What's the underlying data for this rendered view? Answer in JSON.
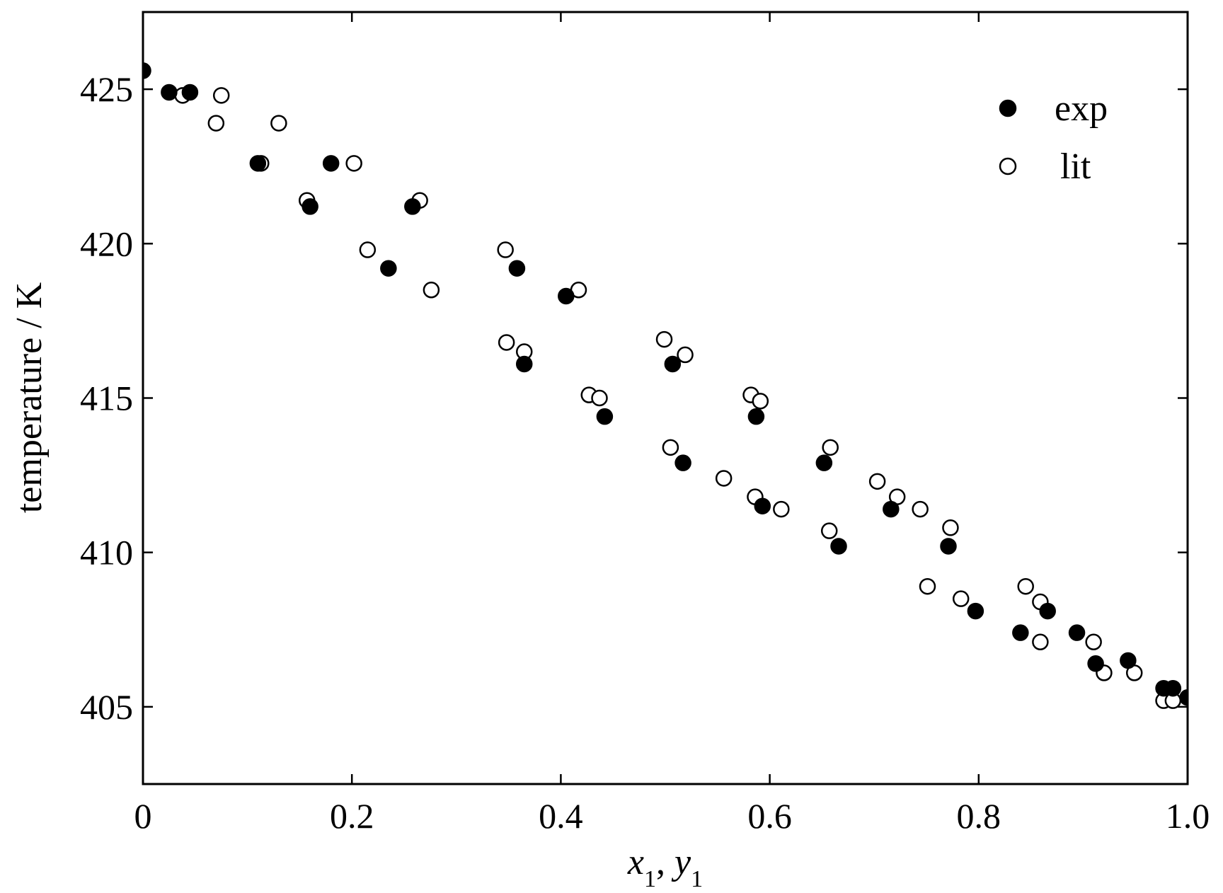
{
  "chart_data": {
    "type": "scatter",
    "xlabel": "x1, y1",
    "xlabel_parts": {
      "var1": "x",
      "sub1": "1",
      "sep": ", ",
      "var2": "y",
      "sub2": "1"
    },
    "ylabel": "temperature / K",
    "xlim": [
      0,
      1.0
    ],
    "ylim": [
      402.5,
      427.5
    ],
    "x_ticks": [
      0,
      0.2,
      0.4,
      0.6,
      0.8,
      1.0
    ],
    "x_tick_labels": [
      "0",
      "0.2",
      "0.4",
      "0.6",
      "0.8",
      "1.0"
    ],
    "y_ticks": [
      405,
      410,
      415,
      420,
      425
    ],
    "y_tick_labels": [
      "405",
      "410",
      "415",
      "420",
      "425"
    ],
    "grid": false,
    "legend_position": "top-right",
    "series": [
      {
        "name": "exp",
        "marker": "filled-circle",
        "color": "#000000",
        "points": [
          [
            0.0,
            425.6
          ],
          [
            0.025,
            424.9
          ],
          [
            0.045,
            424.9
          ],
          [
            0.11,
            422.6
          ],
          [
            0.16,
            421.2
          ],
          [
            0.18,
            422.6
          ],
          [
            0.235,
            419.2
          ],
          [
            0.258,
            421.2
          ],
          [
            0.358,
            419.2
          ],
          [
            0.365,
            416.1
          ],
          [
            0.405,
            418.3
          ],
          [
            0.442,
            414.4
          ],
          [
            0.507,
            416.1
          ],
          [
            0.517,
            412.9
          ],
          [
            0.587,
            414.4
          ],
          [
            0.593,
            411.5
          ],
          [
            0.652,
            412.9
          ],
          [
            0.666,
            410.2
          ],
          [
            0.716,
            411.4
          ],
          [
            0.771,
            410.2
          ],
          [
            0.797,
            408.1
          ],
          [
            0.84,
            407.4
          ],
          [
            0.866,
            408.1
          ],
          [
            0.894,
            407.4
          ],
          [
            0.912,
            406.4
          ],
          [
            0.943,
            406.5
          ],
          [
            0.977,
            405.6
          ],
          [
            0.986,
            405.6
          ],
          [
            1.0,
            405.3
          ]
        ]
      },
      {
        "name": "lit",
        "marker": "open-circle",
        "color": "#000000",
        "points": [
          [
            0.038,
            424.8
          ],
          [
            0.07,
            423.9
          ],
          [
            0.075,
            424.8
          ],
          [
            0.113,
            422.6
          ],
          [
            0.13,
            423.9
          ],
          [
            0.157,
            421.4
          ],
          [
            0.202,
            422.6
          ],
          [
            0.215,
            419.8
          ],
          [
            0.265,
            421.4
          ],
          [
            0.276,
            418.5
          ],
          [
            0.347,
            419.8
          ],
          [
            0.348,
            416.8
          ],
          [
            0.365,
            416.5
          ],
          [
            0.417,
            418.5
          ],
          [
            0.427,
            415.1
          ],
          [
            0.437,
            415.0
          ],
          [
            0.499,
            416.9
          ],
          [
            0.505,
            413.4
          ],
          [
            0.519,
            416.4
          ],
          [
            0.556,
            412.4
          ],
          [
            0.582,
            415.1
          ],
          [
            0.586,
            411.8
          ],
          [
            0.591,
            414.9
          ],
          [
            0.611,
            411.4
          ],
          [
            0.657,
            410.7
          ],
          [
            0.658,
            413.4
          ],
          [
            0.703,
            412.3
          ],
          [
            0.722,
            411.8
          ],
          [
            0.744,
            411.4
          ],
          [
            0.751,
            408.9
          ],
          [
            0.773,
            410.8
          ],
          [
            0.783,
            408.5
          ],
          [
            0.845,
            408.9
          ],
          [
            0.859,
            408.4
          ],
          [
            0.859,
            407.1
          ],
          [
            0.91,
            407.1
          ],
          [
            0.92,
            406.1
          ],
          [
            0.949,
            406.1
          ],
          [
            0.977,
            405.2
          ],
          [
            0.986,
            405.2
          ]
        ]
      }
    ]
  }
}
